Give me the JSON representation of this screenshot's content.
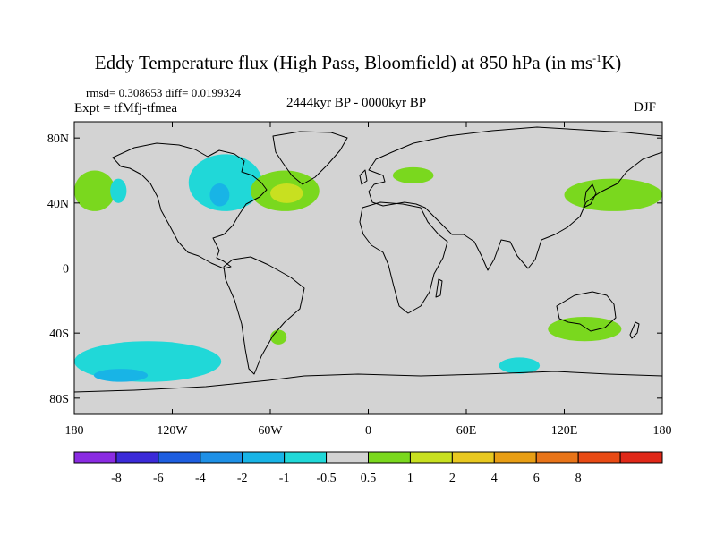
{
  "header": {
    "title_main": "Eddy Temperature flux (High Pass, Bloomfield) at 850 hPa (in ms",
    "title_sup": "-1",
    "title_end": "K)",
    "stats": "rmsd= 0.308653 diff= 0.0199324",
    "experiment": "Expt = tfMfj-tfmea",
    "period": "2444kyr BP - 0000kyr BP",
    "season": "DJF"
  },
  "map": {
    "projection": "cylindrical equidistant",
    "lon_range": [
      -180,
      180
    ],
    "lat_range": [
      -90,
      90
    ],
    "background_color": "#d3d3d3",
    "coastline_color": "#000000",
    "lat_ticks": [
      {
        "lat": 80,
        "label": "80N"
      },
      {
        "lat": 40,
        "label": "40N"
      },
      {
        "lat": 0,
        "label": "0"
      },
      {
        "lat": -40,
        "label": "40S"
      },
      {
        "lat": -80,
        "label": "80S"
      }
    ],
    "lon_ticks": [
      {
        "lon": -180,
        "label": "180"
      },
      {
        "lon": -120,
        "label": "120W"
      },
      {
        "lon": -60,
        "label": "60W"
      },
      {
        "lon": 0,
        "label": "0"
      },
      {
        "lon": 60,
        "label": "60E"
      },
      {
        "lon": 120,
        "label": "120E"
      },
      {
        "lon": 180,
        "label": "180"
      }
    ]
  },
  "colorbar": {
    "colors": [
      "#8a2be2",
      "#3b2ad8",
      "#1e5ee0",
      "#1e90e6",
      "#18b4e6",
      "#20d8d8",
      "#d3d3d3",
      "#7ad81e",
      "#c8e020",
      "#e8c820",
      "#e89e14",
      "#e87418",
      "#e84a14",
      "#e02818"
    ],
    "labels": [
      "-8",
      "-6",
      "-4",
      "-2",
      "-1",
      "-0.5",
      "0.5",
      "1",
      "2",
      "4",
      "6",
      "8"
    ]
  },
  "chart_data": {
    "type": "heatmap",
    "variable": "Eddy Temperature flux (High Pass, Bloomfield) at 850 hPa",
    "units": "ms-1K",
    "levels": [
      -8,
      -6,
      -4,
      -2,
      -1,
      -0.5,
      0.5,
      1,
      2,
      4,
      6,
      8
    ],
    "anomaly_regions": [
      {
        "lon": [
          -180,
          -155
        ],
        "lat": [
          35,
          60
        ],
        "class": "0.5 to 1",
        "color": "#7ad81e"
      },
      {
        "lon": [
          -158,
          -148
        ],
        "lat": [
          40,
          55
        ],
        "class": "-0.5 to -1",
        "color": "#20d8d8"
      },
      {
        "lon": [
          -110,
          -65
        ],
        "lat": [
          35,
          70
        ],
        "class": "-0.5 to -1",
        "color": "#20d8d8"
      },
      {
        "lon": [
          -97,
          -85
        ],
        "lat": [
          38,
          52
        ],
        "class": "-1 to -2",
        "color": "#18b4e6"
      },
      {
        "lon": [
          -72,
          -30
        ],
        "lat": [
          35,
          60
        ],
        "class": "0.5 to 1",
        "color": "#7ad81e"
      },
      {
        "lon": [
          -60,
          -40
        ],
        "lat": [
          40,
          52
        ],
        "class": "1 to 2",
        "color": "#c8e020"
      },
      {
        "lon": [
          15,
          40
        ],
        "lat": [
          52,
          62
        ],
        "class": "0.5 to 1",
        "color": "#7ad81e"
      },
      {
        "lon": [
          120,
          180
        ],
        "lat": [
          35,
          55
        ],
        "class": "0.5 to 1",
        "color": "#7ad81e"
      },
      {
        "lon": [
          -180,
          -90
        ],
        "lat": [
          -70,
          -45
        ],
        "class": "-0.5 to -1",
        "color": "#20d8d8"
      },
      {
        "lon": [
          -168,
          -135
        ],
        "lat": [
          -70,
          -62
        ],
        "class": "-1 to -2",
        "color": "#18b4e6"
      },
      {
        "lon": [
          110,
          155
        ],
        "lat": [
          -45,
          -30
        ],
        "class": "0.5 to 1",
        "color": "#7ad81e"
      },
      {
        "lon": [
          -60,
          -50
        ],
        "lat": [
          -47,
          -38
        ],
        "class": "0.5 to 1",
        "color": "#7ad81e"
      },
      {
        "lon": [
          80,
          105
        ],
        "lat": [
          -65,
          -55
        ],
        "class": "-0.5 to -1",
        "color": "#20d8d8"
      }
    ]
  }
}
